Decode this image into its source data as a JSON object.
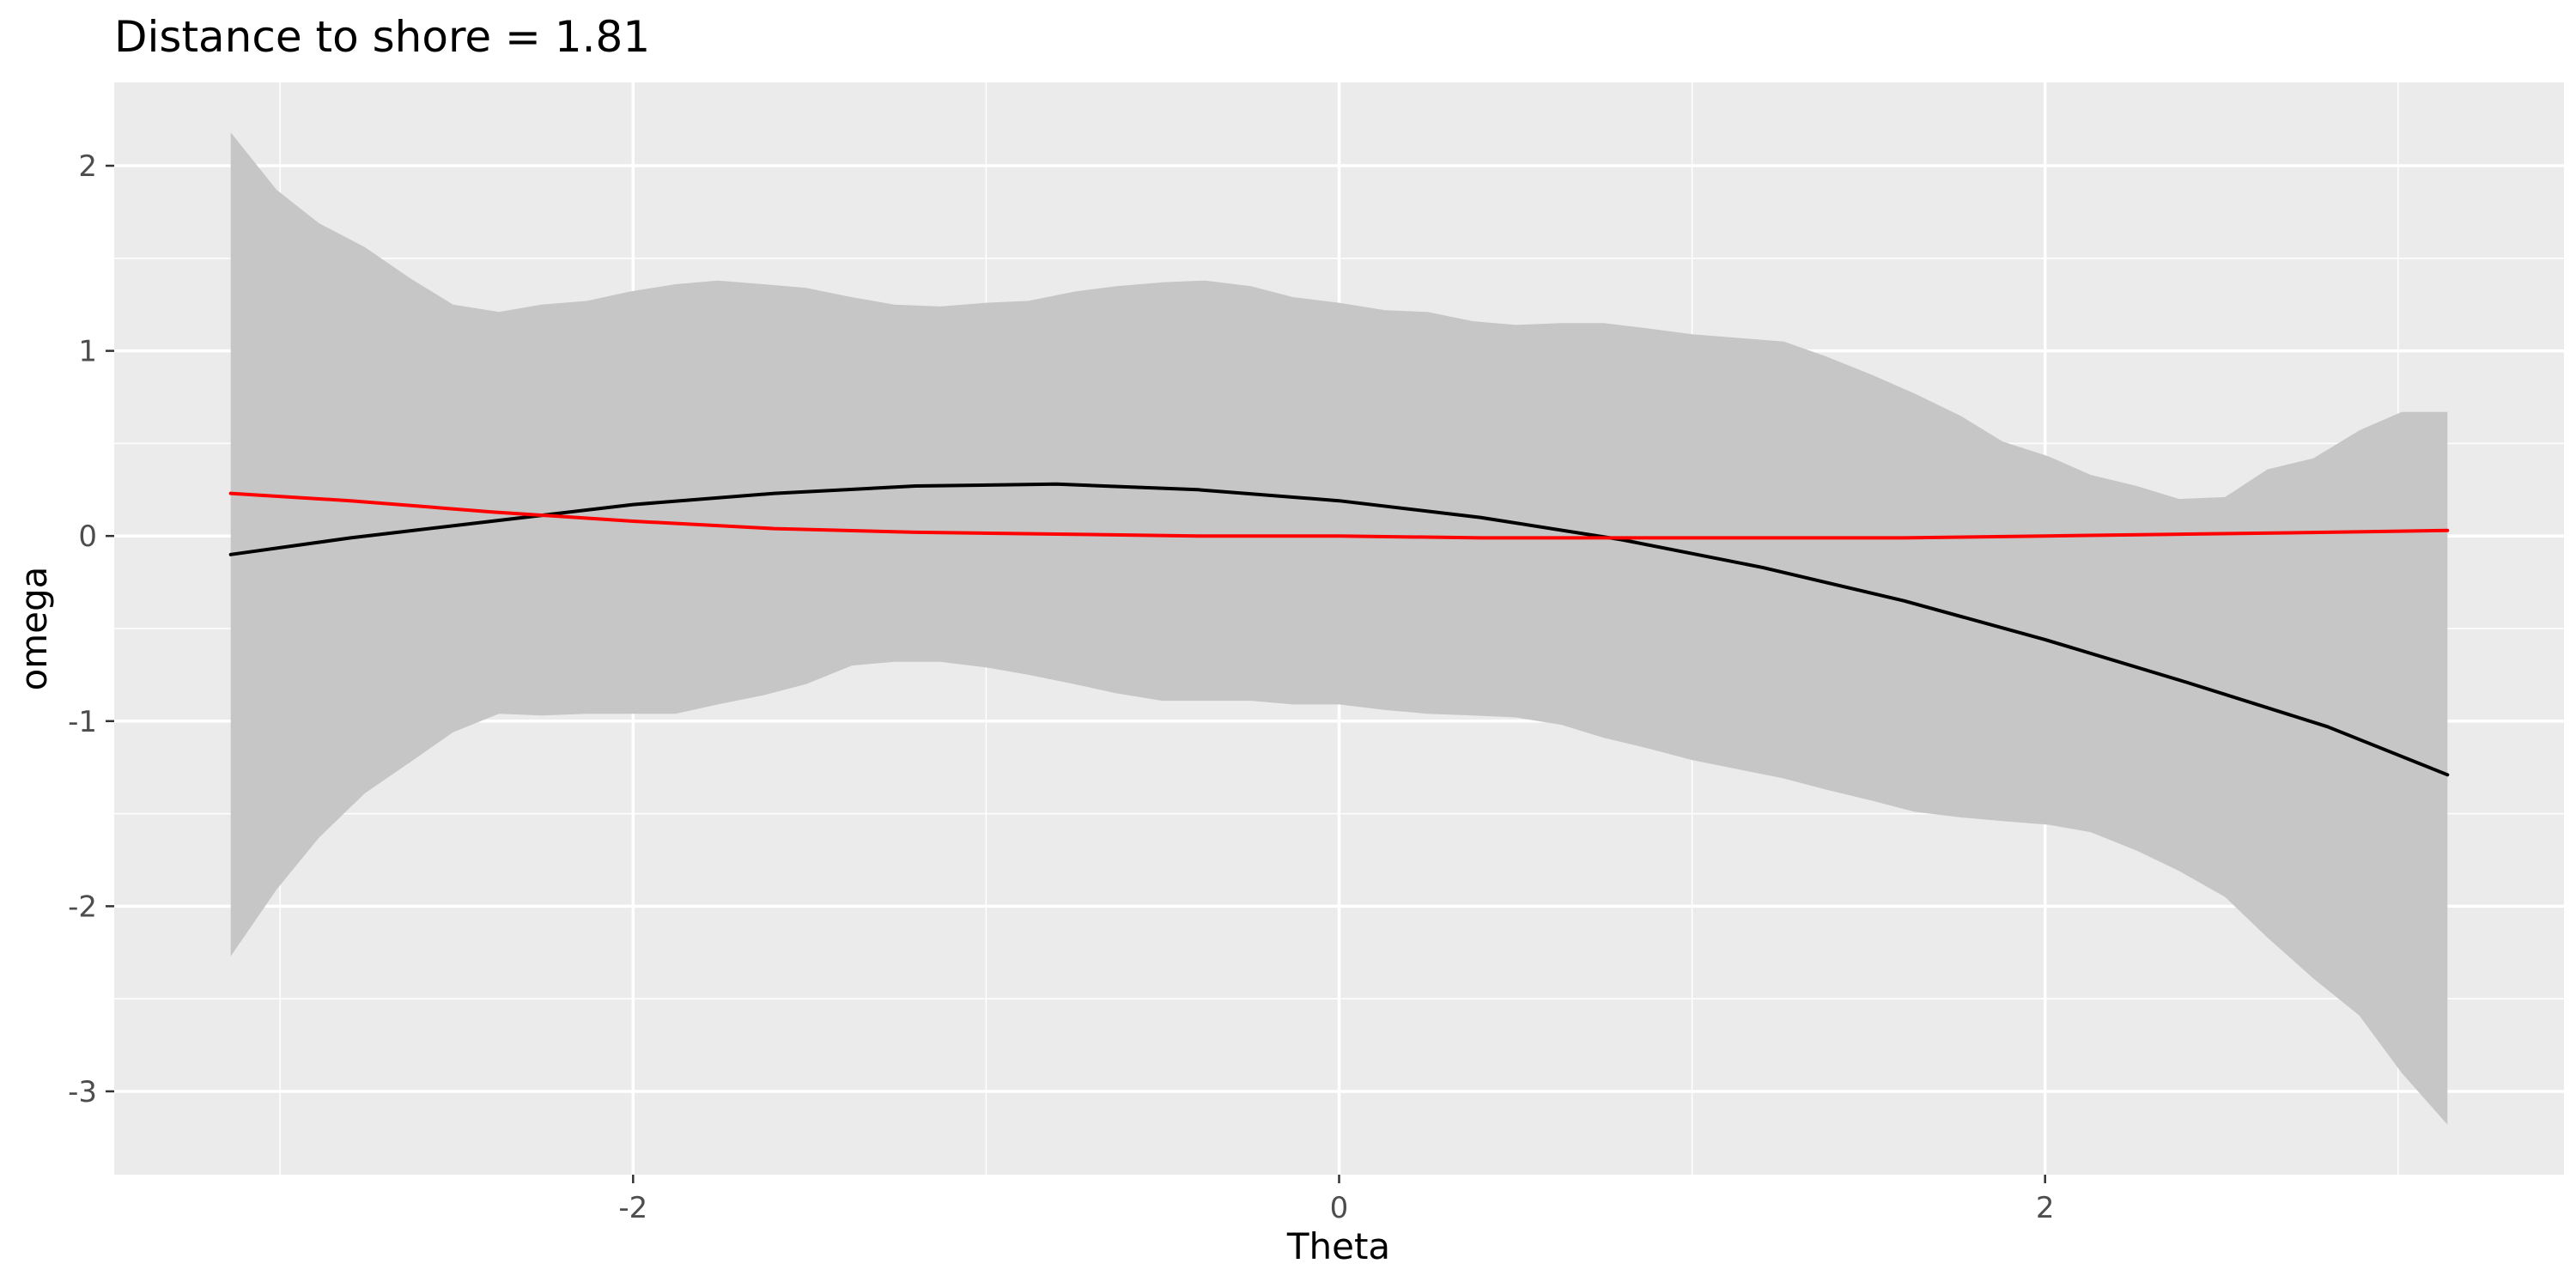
{
  "chart_data": {
    "type": "line",
    "title": "Distance to shore = 1.81",
    "xlabel": "Theta",
    "ylabel": "omega",
    "xlim": [
      -3.47,
      3.47
    ],
    "ylim": [
      -3.45,
      2.45
    ],
    "x_ticks": [
      -2,
      0,
      2
    ],
    "x_tick_labels": [
      "-2",
      "0",
      "2"
    ],
    "x_minor_ticks": [
      -3,
      -1,
      1,
      3
    ],
    "y_ticks": [
      -3,
      -2,
      -1,
      0,
      1,
      2
    ],
    "y_tick_labels": [
      "-3",
      "-2",
      "-1",
      "0",
      "1",
      "2"
    ],
    "y_minor_ticks": [
      -2.5,
      -1.5,
      -0.5,
      0.5,
      1.5
    ],
    "grid": true,
    "legend": "none",
    "colors": {
      "panel_background": "#EBEBEB",
      "grid": "#FFFFFF",
      "ribbon": "#C6C6C6",
      "black_series": "#000000",
      "red_series": "#FF0000"
    },
    "ribbon": {
      "x": [
        -3.14,
        -3.01,
        -2.89,
        -2.76,
        -2.63,
        -2.51,
        -2.38,
        -2.26,
        -2.13,
        -2.01,
        -1.88,
        -1.76,
        -1.63,
        -1.51,
        -1.38,
        -1.26,
        -1.13,
        -1.0,
        -0.88,
        -0.75,
        -0.63,
        -0.5,
        -0.38,
        -0.25,
        -0.13,
        0.0,
        0.13,
        0.25,
        0.38,
        0.5,
        0.63,
        0.75,
        0.88,
        1.0,
        1.13,
        1.26,
        1.38,
        1.51,
        1.63,
        1.76,
        1.88,
        2.01,
        2.13,
        2.26,
        2.38,
        2.51,
        2.63,
        2.76,
        2.89,
        3.01,
        3.14
      ],
      "upper": [
        2.18,
        1.87,
        1.69,
        1.56,
        1.39,
        1.25,
        1.21,
        1.25,
        1.27,
        1.32,
        1.36,
        1.38,
        1.36,
        1.34,
        1.29,
        1.25,
        1.24,
        1.26,
        1.27,
        1.32,
        1.35,
        1.37,
        1.38,
        1.35,
        1.29,
        1.26,
        1.22,
        1.21,
        1.16,
        1.14,
        1.15,
        1.15,
        1.12,
        1.09,
        1.07,
        1.05,
        0.97,
        0.87,
        0.77,
        0.65,
        0.51,
        0.43,
        0.33,
        0.27,
        0.2,
        0.21,
        0.36,
        0.42,
        0.57,
        0.67,
        0.67
      ],
      "lower": [
        -2.27,
        -1.91,
        -1.63,
        -1.39,
        -1.22,
        -1.06,
        -0.96,
        -0.97,
        -0.96,
        -0.96,
        -0.96,
        -0.91,
        -0.86,
        -0.8,
        -0.7,
        -0.68,
        -0.68,
        -0.71,
        -0.75,
        -0.8,
        -0.85,
        -0.89,
        -0.89,
        -0.89,
        -0.91,
        -0.91,
        -0.94,
        -0.96,
        -0.97,
        -0.98,
        -1.02,
        -1.09,
        -1.15,
        -1.21,
        -1.26,
        -1.31,
        -1.37,
        -1.43,
        -1.49,
        -1.52,
        -1.54,
        -1.56,
        -1.6,
        -1.7,
        -1.81,
        -1.95,
        -2.17,
        -2.39,
        -2.59,
        -2.9,
        -3.18
      ]
    },
    "series": [
      {
        "color": "#000000",
        "x": [
          -3.14,
          -2.8,
          -2.4,
          -2.0,
          -1.6,
          -1.2,
          -0.8,
          -0.4,
          0.0,
          0.4,
          0.8,
          1.2,
          1.6,
          2.0,
          2.4,
          2.8,
          3.14
        ],
        "values": [
          -0.1,
          -0.01,
          0.08,
          0.17,
          0.23,
          0.27,
          0.28,
          0.25,
          0.19,
          0.1,
          -0.02,
          -0.17,
          -0.35,
          -0.56,
          -0.79,
          -1.03,
          -1.29
        ]
      },
      {
        "color": "#FF0000",
        "x": [
          -3.14,
          -2.8,
          -2.4,
          -2.0,
          -1.6,
          -1.2,
          -0.8,
          -0.4,
          0.0,
          0.4,
          0.8,
          1.2,
          1.6,
          2.0,
          2.4,
          2.8,
          3.14
        ],
        "values": [
          0.23,
          0.19,
          0.13,
          0.08,
          0.04,
          0.02,
          0.01,
          0.0,
          0.0,
          -0.01,
          -0.01,
          -0.01,
          -0.01,
          0.0,
          0.01,
          0.02,
          0.03
        ]
      }
    ]
  }
}
